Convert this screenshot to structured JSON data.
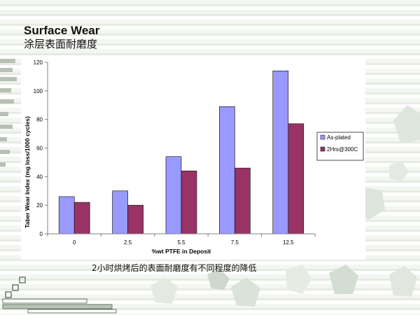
{
  "slide": {
    "title": "Surface Wear",
    "subtitle": "涂层表面耐磨度",
    "caption": "2小时烘烤后的表面耐磨度有不同程度的降低"
  },
  "chart_data": {
    "type": "bar",
    "categories": [
      "0",
      "2.5",
      "5.5",
      "7.5",
      "12.5"
    ],
    "series": [
      {
        "name": "As-plated",
        "values": [
          26,
          30,
          54,
          89,
          114
        ],
        "color": "#9999ff"
      },
      {
        "name": "2Hrs@300C",
        "values": [
          22,
          20,
          44,
          46,
          77
        ],
        "color": "#993366"
      }
    ],
    "xlabel": "%wt PTFE in Deposit",
    "ylabel": "Taber Wear Index (mg loss/1000 cycles)",
    "ylim": [
      0,
      120
    ],
    "yticks": [
      "0",
      "20",
      "40",
      "60",
      "80",
      "100",
      "120"
    ],
    "grid": false,
    "legend_position": "right"
  },
  "colors": {
    "plot_background": "#ffffff",
    "axis": "#808080",
    "text": "#000000"
  }
}
